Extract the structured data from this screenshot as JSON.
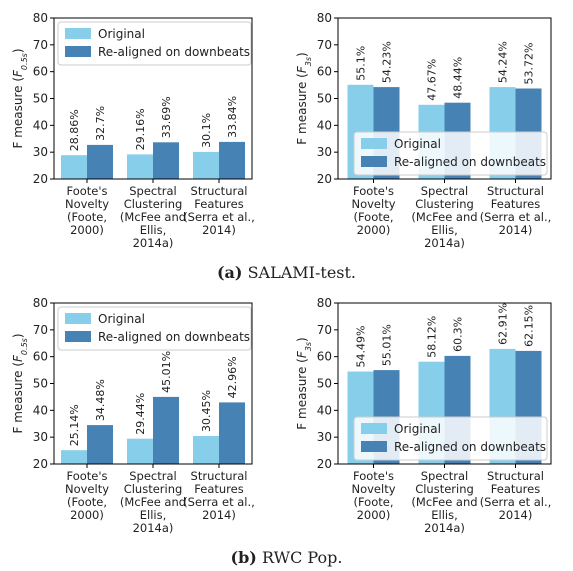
{
  "colors": {
    "original": "#87ceeb",
    "realigned": "#4682b4",
    "axis": "#000000",
    "text": "#222222"
  },
  "chart_data": [
    {
      "id": "a-left",
      "type": "bar",
      "categories": [
        [
          "Foote's",
          "Novelty",
          "(Foote,",
          "2000)"
        ],
        [
          "Spectral",
          "Clustering",
          "(McFee and",
          "Ellis,",
          "2014a)"
        ],
        [
          "Structural",
          "Features",
          "(Serra et al.,",
          "2014)"
        ]
      ],
      "series": [
        {
          "name": "Original",
          "values": [
            28.86,
            29.16,
            30.1
          ],
          "labels": [
            "28.86%",
            "29.16%",
            "30.1%"
          ]
        },
        {
          "name": "Re-aligned on downbeats",
          "values": [
            32.7,
            33.69,
            33.84
          ],
          "labels": [
            "32.7%",
            "33.69%",
            "33.84%"
          ]
        }
      ],
      "ylabel_main": "F measure (",
      "ylabel_sym": "F",
      "ylabel_sub": "0.5s",
      "ylabel_end": ")",
      "ylim": [
        20,
        80
      ],
      "yticks": [
        "20",
        "30",
        "40",
        "50",
        "60",
        "70",
        "80"
      ],
      "legend": "top-left"
    },
    {
      "id": "a-right",
      "type": "bar",
      "categories": [
        [
          "Foote's",
          "Novelty",
          "(Foote,",
          "2000)"
        ],
        [
          "Spectral",
          "Clustering",
          "(McFee and",
          "Ellis,",
          "2014a)"
        ],
        [
          "Structural",
          "Features",
          "(Serra et al.,",
          "2014)"
        ]
      ],
      "series": [
        {
          "name": "Original",
          "values": [
            55.1,
            47.67,
            54.24
          ],
          "labels": [
            "55.1%",
            "47.67%",
            "54.24%"
          ]
        },
        {
          "name": "Re-aligned on downbeats",
          "values": [
            54.23,
            48.44,
            53.72
          ],
          "labels": [
            "54.23%",
            "48.44%",
            "53.72%"
          ]
        }
      ],
      "ylabel_main": "F measure (",
      "ylabel_sym": "F",
      "ylabel_sub": "3s",
      "ylabel_end": ")",
      "ylim": [
        20,
        80
      ],
      "yticks": [
        "20",
        "30",
        "40",
        "50",
        "60",
        "70",
        "80"
      ],
      "legend": "bottom-right"
    },
    {
      "id": "b-left",
      "type": "bar",
      "categories": [
        [
          "Foote's",
          "Novelty",
          "(Foote,",
          "2000)"
        ],
        [
          "Spectral",
          "Clustering",
          "(McFee and",
          "Ellis,",
          "2014a)"
        ],
        [
          "Structural",
          "Features",
          "(Serra et al.,",
          "2014)"
        ]
      ],
      "series": [
        {
          "name": "Original",
          "values": [
            25.14,
            29.44,
            30.45
          ],
          "labels": [
            "25.14%",
            "29.44%",
            "30.45%"
          ]
        },
        {
          "name": "Re-aligned on downbeats",
          "values": [
            34.48,
            45.01,
            42.96
          ],
          "labels": [
            "34.48%",
            "45.01%",
            "42.96%"
          ]
        }
      ],
      "ylabel_main": "F measure (",
      "ylabel_sym": "F",
      "ylabel_sub": "0.5s",
      "ylabel_end": ")",
      "ylim": [
        20,
        80
      ],
      "yticks": [
        "20",
        "30",
        "40",
        "50",
        "60",
        "70",
        "80"
      ],
      "legend": "top-left"
    },
    {
      "id": "b-right",
      "type": "bar",
      "categories": [
        [
          "Foote's",
          "Novelty",
          "(Foote,",
          "2000)"
        ],
        [
          "Spectral",
          "Clustering",
          "(McFee and",
          "Ellis,",
          "2014a)"
        ],
        [
          "Structural",
          "Features",
          "(Serra et al.,",
          "2014)"
        ]
      ],
      "series": [
        {
          "name": "Original",
          "values": [
            54.49,
            58.12,
            62.91
          ],
          "labels": [
            "54.49%",
            "58.12%",
            "62.91%"
          ]
        },
        {
          "name": "Re-aligned on downbeats",
          "values": [
            55.01,
            60.3,
            62.15
          ],
          "labels": [
            "55.01%",
            "60.3%",
            "62.15%"
          ]
        }
      ],
      "ylabel_main": "F measure (",
      "ylabel_sym": "F",
      "ylabel_sub": "3s",
      "ylabel_end": ")",
      "ylim": [
        20,
        80
      ],
      "yticks": [
        "20",
        "30",
        "40",
        "50",
        "60",
        "70",
        "80"
      ],
      "legend": "bottom-right"
    }
  ],
  "captions": {
    "a_tag": "(a)",
    "a_text": "SALAMI-test.",
    "b_tag": "(b)",
    "b_text": "RWC Pop."
  }
}
